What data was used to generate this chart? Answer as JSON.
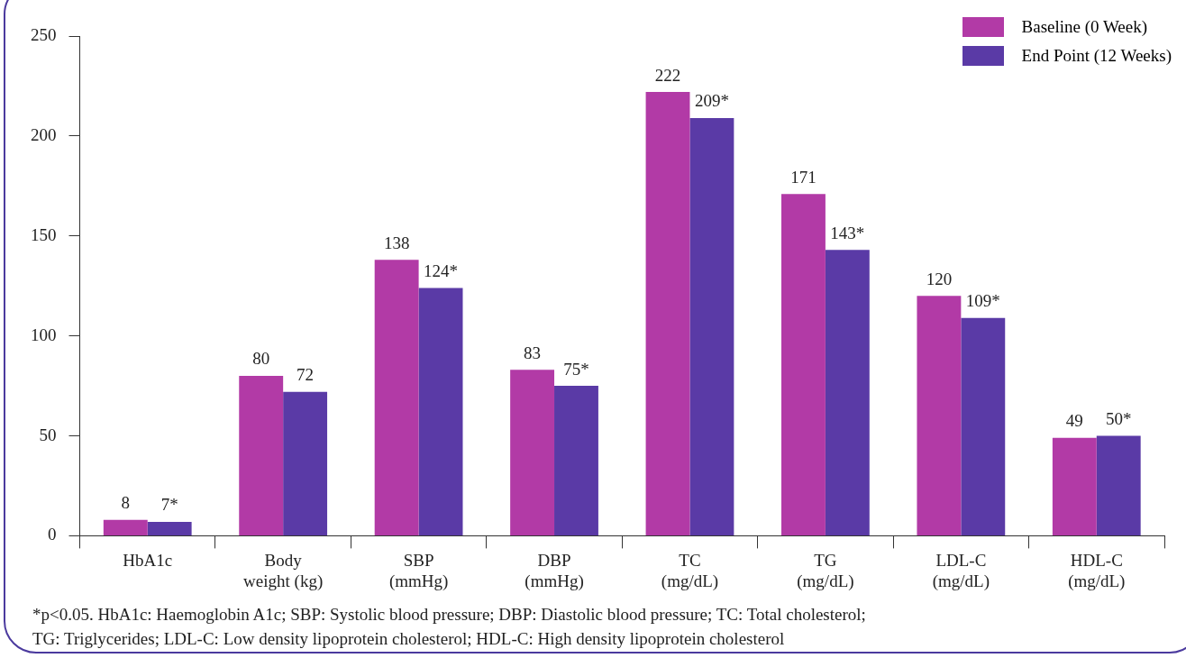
{
  "chart_data": {
    "type": "bar",
    "categories": [
      "HbA1c",
      "Body weight (kg)",
      "SBP (mmHg)",
      "DBP (mmHg)",
      "TC (mg/dL)",
      "TG (mg/dL)",
      "LDL-C (mg/dL)",
      "HDL-C (mg/dL)"
    ],
    "series": [
      {
        "name": "Baseline (0 Week)",
        "color": "#b23aa6",
        "values": [
          8,
          80,
          138,
          83,
          222,
          171,
          120,
          49
        ],
        "value_labels": [
          "8",
          "80",
          "138",
          "83",
          "222",
          "171",
          "120",
          "49"
        ]
      },
      {
        "name": "End Point (12 Weeks)",
        "color": "#5a3aa6",
        "values": [
          7,
          72,
          124,
          75,
          209,
          143,
          109,
          50
        ],
        "value_labels": [
          "7*",
          "72",
          "124*",
          "75*",
          "209*",
          "143*",
          "109*",
          "50*"
        ]
      }
    ],
    "ylim": [
      0,
      250
    ],
    "yticks": [
      0,
      50,
      100,
      150,
      200,
      250
    ],
    "grid": false,
    "legend": "top right",
    "annotations": [
      "*p<0.05. HbA1c: Haemoglobin A1c; SBP: Systolic blood pressure; DBP: Diastolic blood pressure; TC: Total cholesterol;",
      "TG: Triglycerides; LDL-C: Low density lipoprotein cholesterol; HDL-C: High density lipoprotein cholesterol"
    ]
  }
}
